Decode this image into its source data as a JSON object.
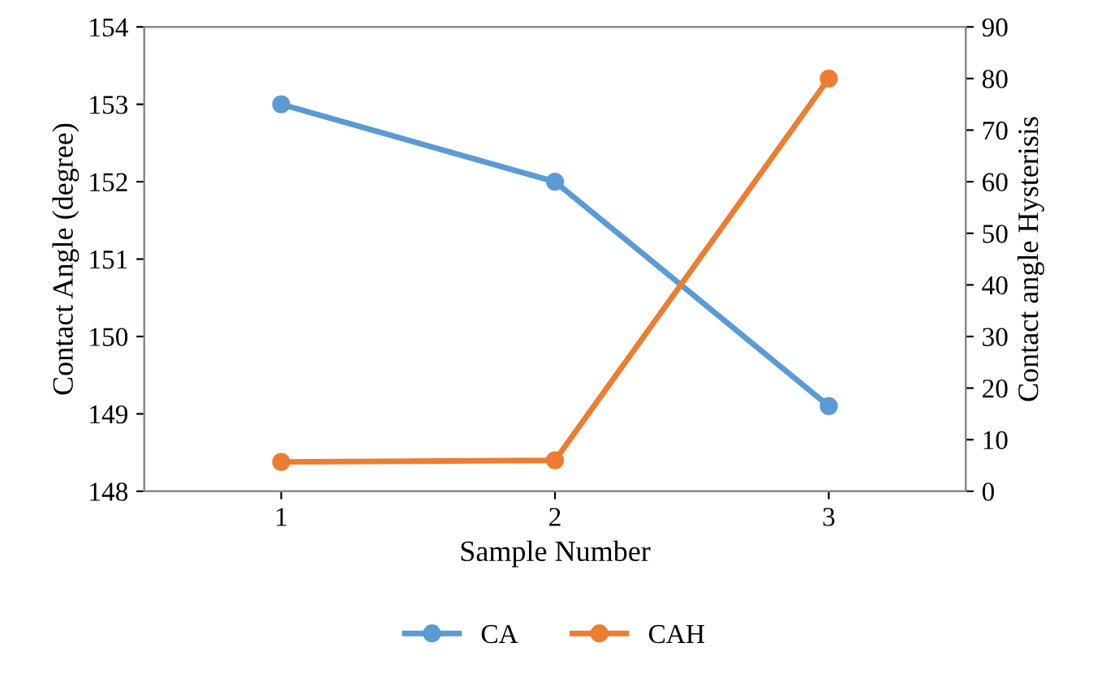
{
  "chart_data": {
    "type": "line",
    "categories": [
      "1",
      "2",
      "3"
    ],
    "xlabel": "Sample Number",
    "ylabel": "Contact Angle (degree)",
    "y2label": "Contact angle Hysterisis",
    "series": [
      {
        "name": "CA",
        "color": "#5b9bd5",
        "values": [
          153,
          152,
          149.1
        ]
      },
      {
        "name": "CAH",
        "color": "#ed7d31",
        "values": [
          5.7,
          6,
          80
        ],
        "axis": "y2"
      }
    ],
    "ylim": [
      148,
      154
    ],
    "yticks": [
      148,
      149,
      150,
      151,
      152,
      153,
      154
    ],
    "y2lim": [
      0,
      90
    ],
    "y2ticks": [
      0,
      10,
      20,
      30,
      40,
      50,
      60,
      70,
      80,
      90
    ],
    "marker": "circle",
    "line_style": "solid",
    "legend": "bottom",
    "grid": false
  }
}
